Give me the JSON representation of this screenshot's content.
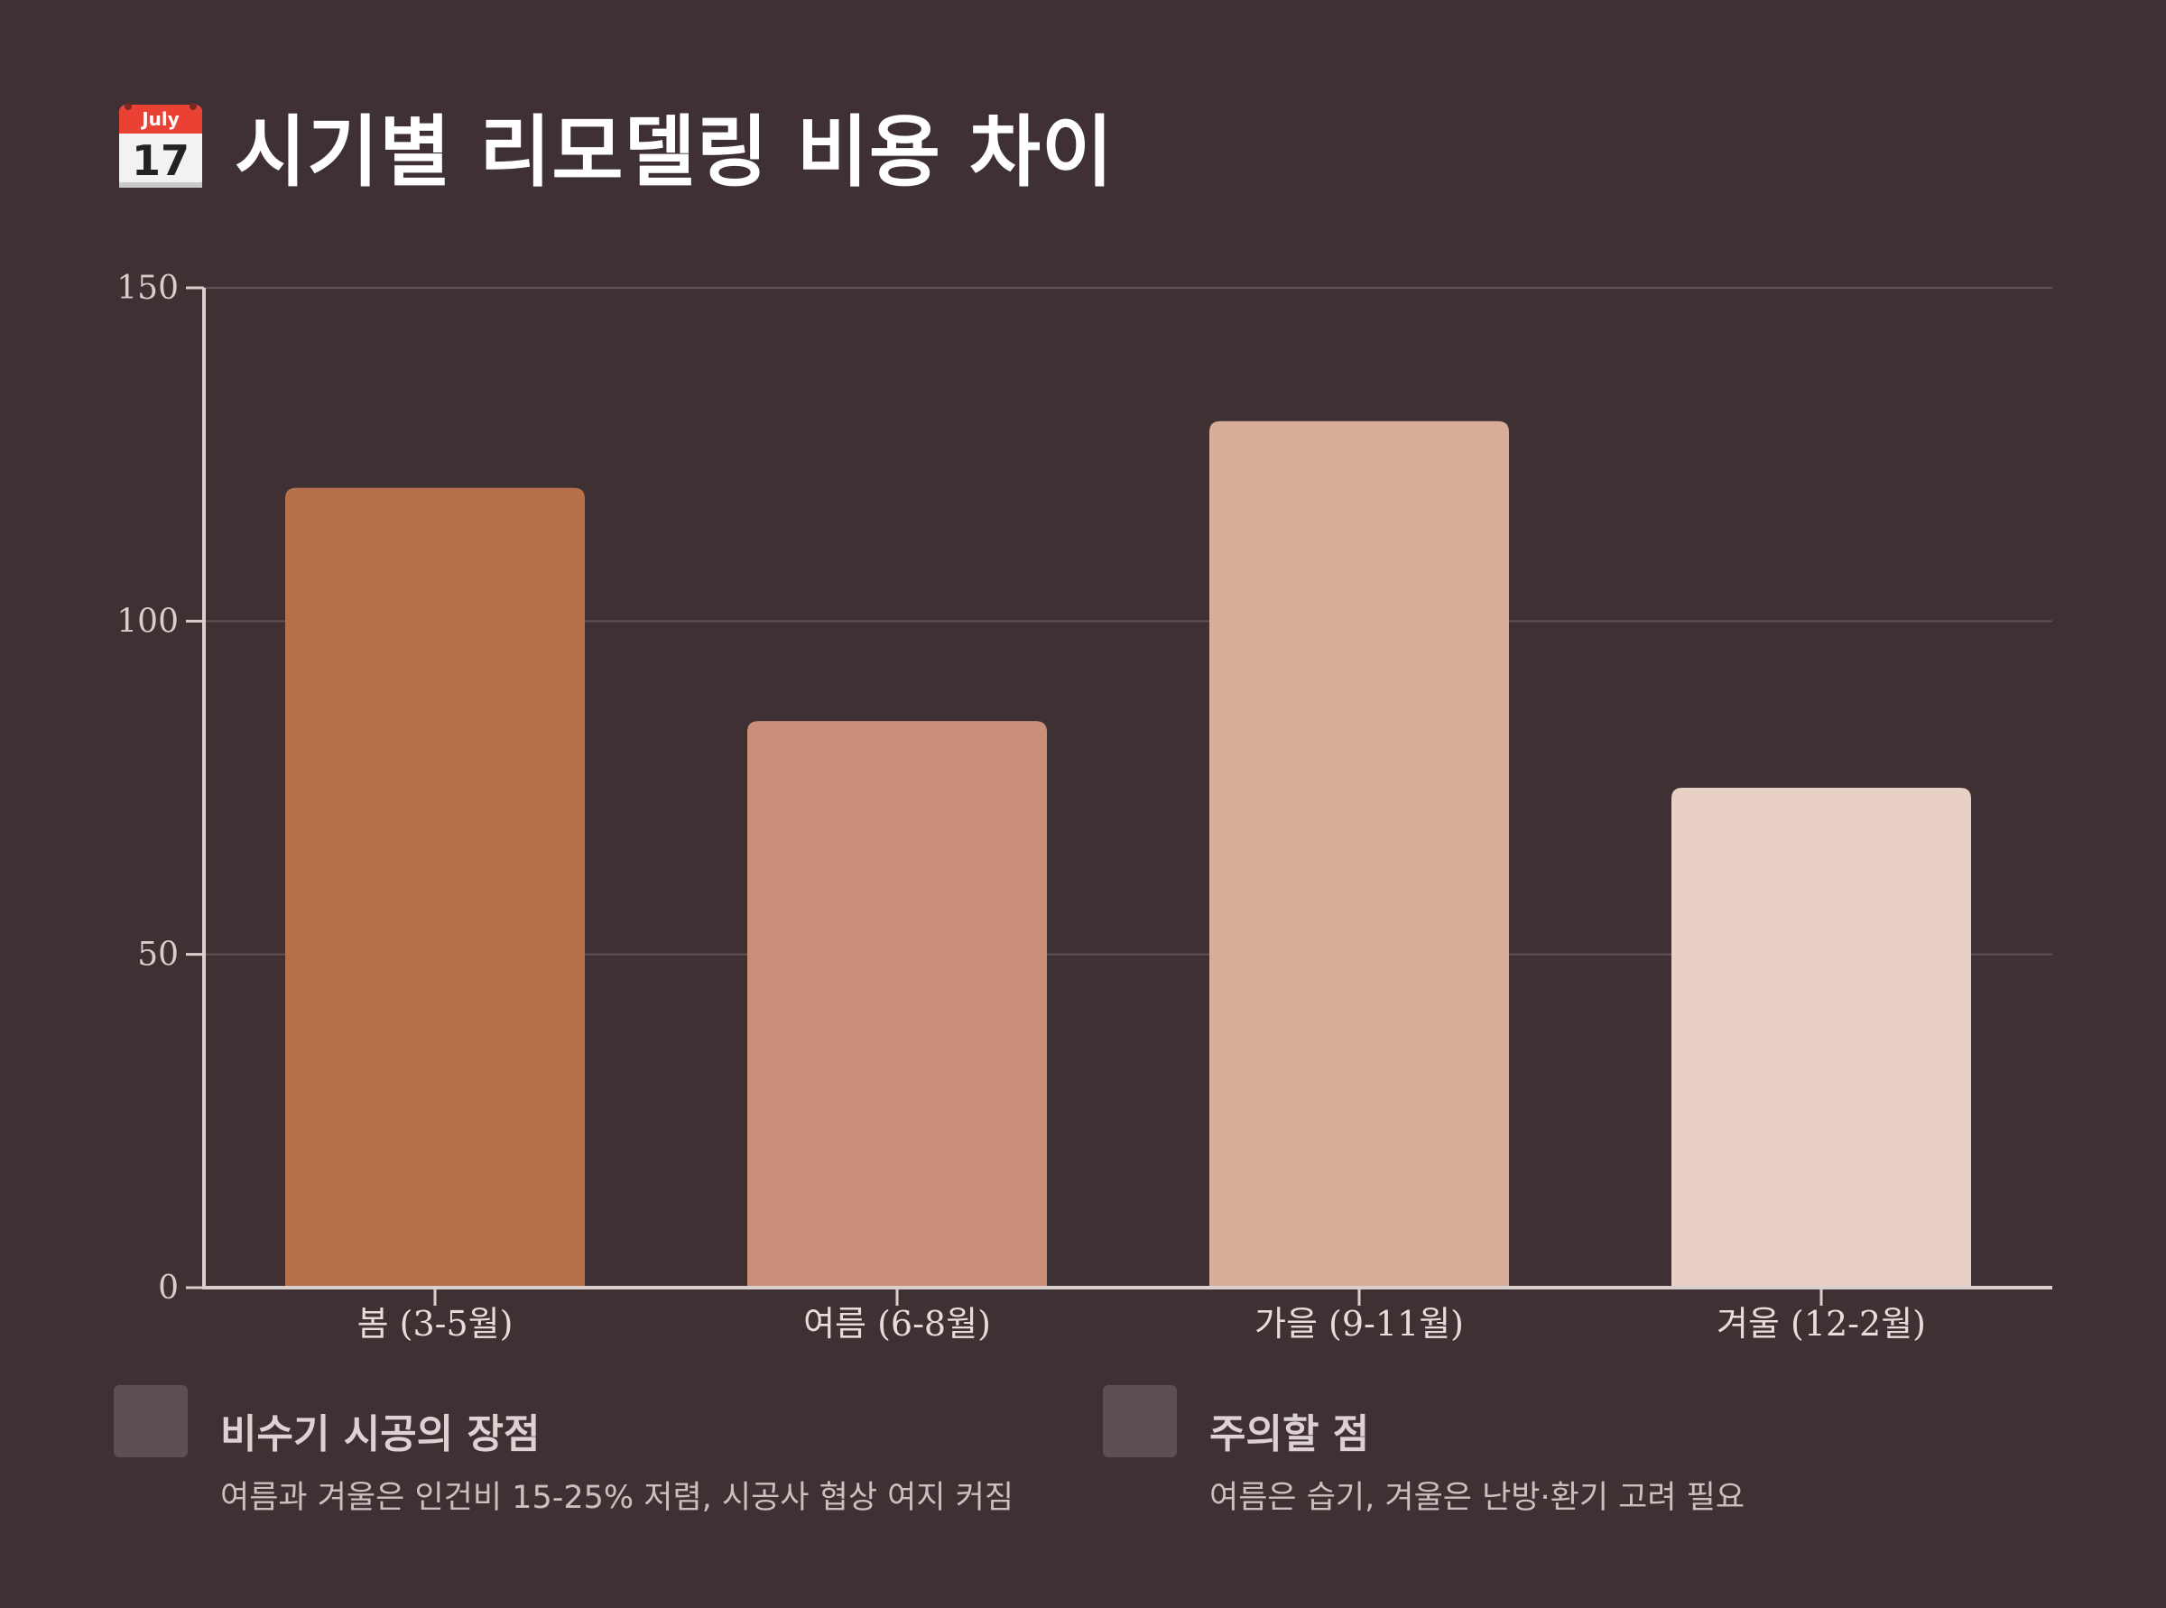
{
  "title": "시기별 리모델링 비용 차이",
  "title_icon": "calendar-icon",
  "calendar_icon": {
    "month": "July",
    "day": "17"
  },
  "chart_data": {
    "type": "bar",
    "title": "시기별 리모델링 비용 차이",
    "categories": [
      "봄 (3-5월)",
      "여름 (6-8월)",
      "가을 (9-11월)",
      "겨울 (12-2월)"
    ],
    "values": [
      120,
      85,
      130,
      75
    ],
    "colors": [
      "#b8704a",
      "#c98f78",
      "#d8ae9b",
      "#e8d0c4"
    ],
    "ylim": [
      0,
      150
    ],
    "yticks": [
      0,
      50,
      100,
      150
    ],
    "xlabel": "",
    "ylabel": "",
    "grid": true,
    "legend": "none"
  },
  "notes": [
    {
      "heading": "비수기 시공의 장점",
      "text": "여름과 겨울은 인건비 15-25% 저렴, 시공사 협상 여지 커짐"
    },
    {
      "heading": "주의할 점",
      "text": "여름은 습기, 겨울은 난방·환기 고려 필요"
    }
  ],
  "colors": {
    "background": "#3e3033",
    "grid": "#5e5255",
    "axis": "#d9cfcf",
    "swatch": "#5c5053"
  }
}
